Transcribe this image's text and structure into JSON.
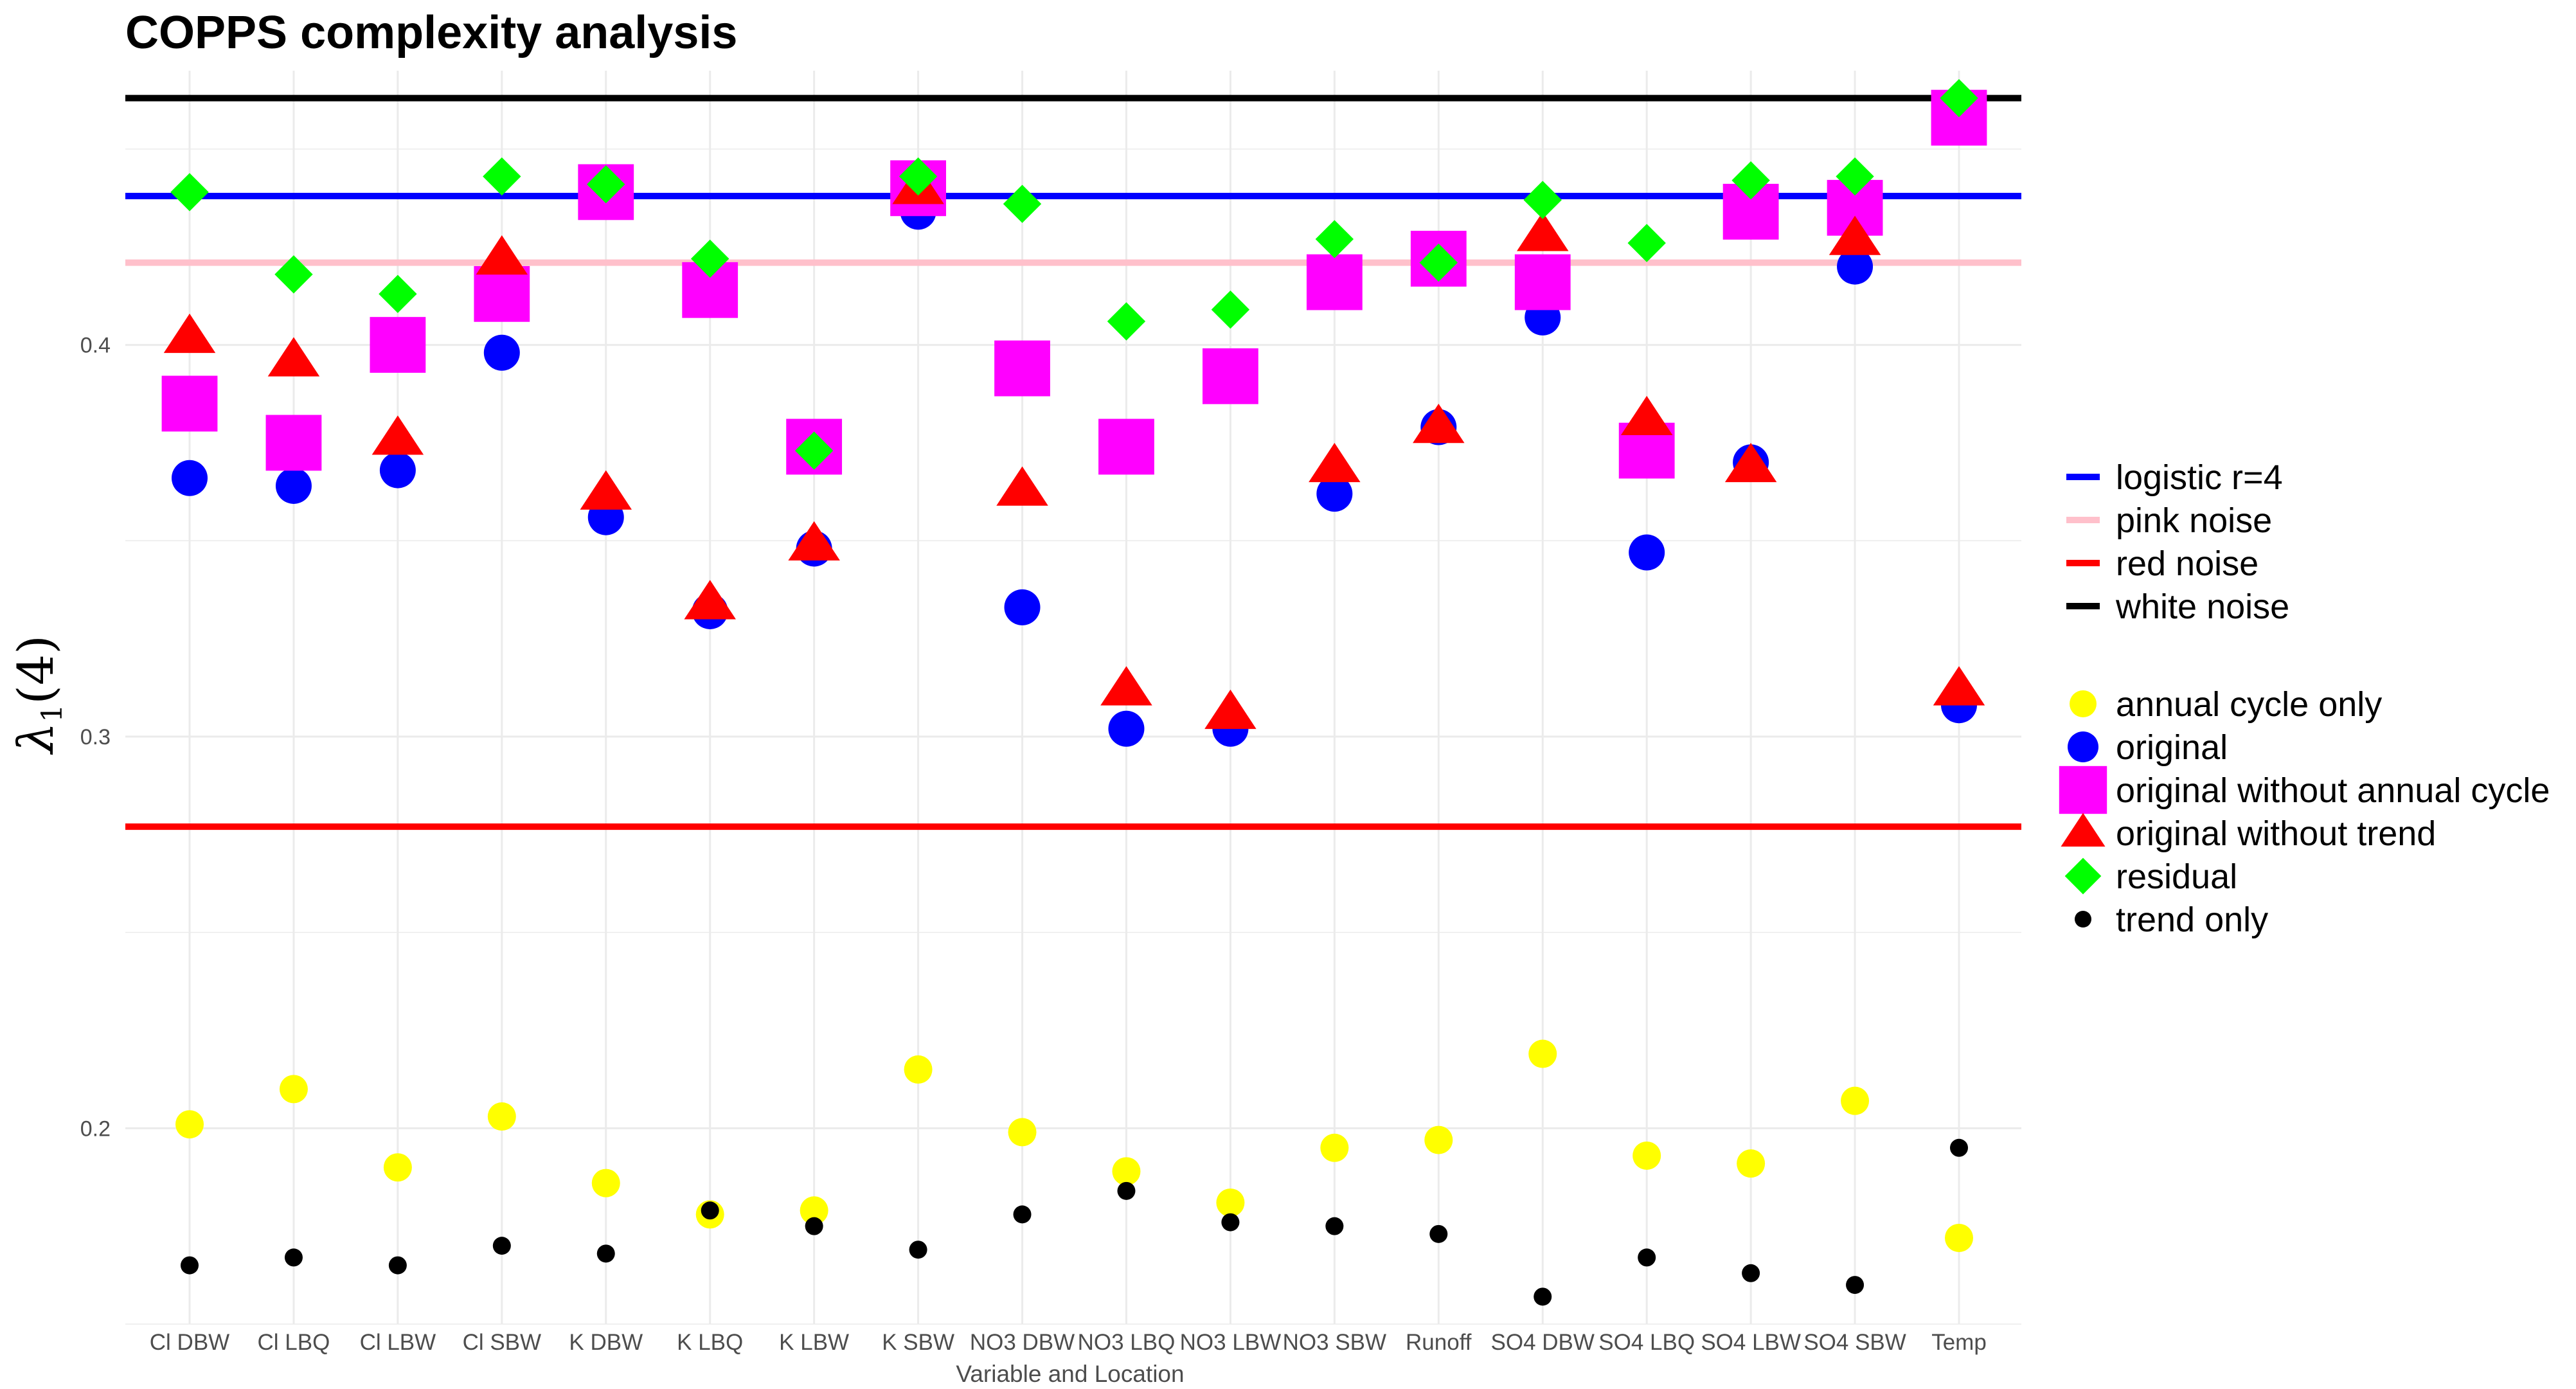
{
  "chart_data": {
    "type": "scatter",
    "title": "COPPS complexity analysis",
    "xlabel": "Variable and Location",
    "ylabel": "λ1(4)",
    "ylabel_main": "λ",
    "ylabel_sub": "1",
    "ylabel_paren": "(4)",
    "ylim": [
      0.15,
      0.47
    ],
    "yticks": [
      0.2,
      0.3,
      0.4
    ],
    "ytick_labels": [
      "0.2",
      "0.3",
      "0.4"
    ],
    "grid": true,
    "legend_position": "right",
    "categories": [
      "Cl DBW",
      "Cl LBQ",
      "Cl LBW",
      "Cl SBW",
      "K DBW",
      "K LBQ",
      "K LBW",
      "K SBW",
      "NO3 DBW",
      "NO3 LBQ",
      "NO3 LBW",
      "NO3 SBW",
      "Runoff",
      "SO4 DBW",
      "SO4 LBQ",
      "SO4 LBW",
      "SO4 SBW",
      "Temp"
    ],
    "reference_lines": [
      {
        "name": "logistic r=4",
        "value": 0.438,
        "color": "#0000ff"
      },
      {
        "name": "pink noise",
        "value": 0.421,
        "color": "#ffc0cb"
      },
      {
        "name": "red noise",
        "value": 0.277,
        "color": "#ff0000"
      },
      {
        "name": "white noise",
        "value": 0.463,
        "color": "#000000"
      }
    ],
    "series": [
      {
        "name": "annual cycle only",
        "shape": "circle",
        "size": "medium",
        "color": "#ffff00",
        "values": [
          0.201,
          0.21,
          0.19,
          0.203,
          0.186,
          0.178,
          0.179,
          0.215,
          0.199,
          0.189,
          0.181,
          0.195,
          0.197,
          0.219,
          0.193,
          0.191,
          0.207,
          0.172
        ]
      },
      {
        "name": "original",
        "shape": "circle",
        "size": "large",
        "color": "#0000ff",
        "values": [
          0.366,
          0.364,
          0.368,
          0.398,
          0.356,
          0.332,
          0.348,
          0.434,
          0.333,
          0.302,
          0.302,
          0.362,
          0.379,
          0.407,
          0.347,
          0.37,
          0.42,
          0.308
        ]
      },
      {
        "name": "original without annual cycle",
        "shape": "square",
        "size": "large",
        "color": "#ff00ff",
        "values": [
          0.385,
          0.375,
          0.4,
          0.413,
          0.439,
          0.414,
          0.374,
          0.44,
          0.394,
          0.374,
          0.392,
          0.416,
          0.422,
          0.416,
          0.373,
          0.434,
          0.435,
          0.458
        ]
      },
      {
        "name": "original without trend",
        "shape": "triangle",
        "size": "large",
        "color": "#ff0000",
        "values": [
          0.402,
          0.396,
          0.376,
          0.422,
          0.362,
          0.334,
          0.349,
          0.44,
          0.363,
          0.312,
          0.306,
          0.369,
          0.379,
          0.428,
          0.381,
          0.369,
          0.427,
          0.312
        ]
      },
      {
        "name": "residual",
        "shape": "diamond",
        "size": "medium",
        "color": "#00ff00",
        "values": [
          0.439,
          0.418,
          0.413,
          0.443,
          0.441,
          0.422,
          0.373,
          0.443,
          0.436,
          0.406,
          0.409,
          0.427,
          0.421,
          0.437,
          0.426,
          0.442,
          0.443,
          0.463
        ]
      },
      {
        "name": "trend only",
        "shape": "circle",
        "size": "small",
        "color": "#000000",
        "values": [
          0.165,
          0.167,
          0.165,
          0.17,
          0.168,
          0.179,
          0.175,
          0.169,
          0.178,
          0.184,
          0.176,
          0.175,
          0.173,
          0.157,
          0.167,
          0.163,
          0.16,
          0.195
        ]
      }
    ]
  }
}
